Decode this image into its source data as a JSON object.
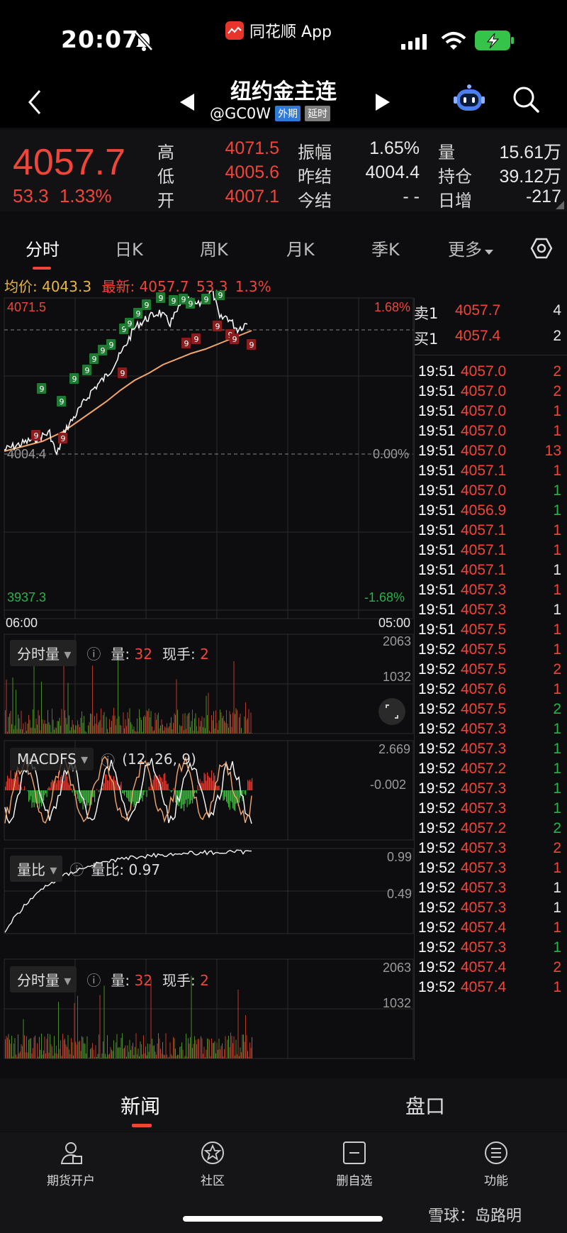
{
  "status_bar": {
    "time": "20:07",
    "app_name": "同花顺 App"
  },
  "header": {
    "title": "纽约金主连",
    "code": "@GC0W",
    "badge_ext": "外期",
    "badge_delay": "延时",
    "icons": [
      "back-icon",
      "prev-arrow-icon",
      "next-arrow-icon",
      "robot-assistant-icon",
      "search-icon"
    ]
  },
  "quote": {
    "price": "4057.7",
    "change": "53.3",
    "change_pct": "1.33%",
    "high_label": "高",
    "high": "4071.5",
    "low_label": "低",
    "low": "4005.6",
    "open_label": "开",
    "open": "4007.1",
    "amplitude_label": "振幅",
    "amplitude": "1.65%",
    "prev_settle_label": "昨结",
    "prev_settle": "4004.4",
    "today_settle_label": "今结",
    "today_settle": "- -",
    "volume_label": "量",
    "volume": "15.61万",
    "open_interest_label": "持仓",
    "open_interest": "39.12万",
    "daily_change_label": "日增",
    "daily_change": "-217"
  },
  "tabs": [
    "分时",
    "日K",
    "周K",
    "月K",
    "季K",
    "更多"
  ],
  "avg_line": {
    "avg_label": "均价:",
    "avg_value": "4043.3",
    "latest_label": "最新:",
    "latest_value": "4057.7",
    "latest_change": "53.3",
    "latest_pct": "1.3%"
  },
  "main_chart": {
    "high": "4071.5",
    "high_pct": "1.68%",
    "base": "4004.4",
    "base_pct": "0.00%",
    "low": "3937.3",
    "low_pct": "-1.68%",
    "time_start": "06:00",
    "time_end": "05:00"
  },
  "volume_panel": {
    "selector": "分时量",
    "qty_label": "量:",
    "qty": "32",
    "now_label": "现手:",
    "now": "2",
    "max": "2063",
    "mid": "1032"
  },
  "macd_panel": {
    "selector": "MACDFS",
    "params": "(12, 26, 9)",
    "max": "2.669",
    "mid": "-0.002"
  },
  "ratio_panel": {
    "selector": "量比",
    "label": "量比:",
    "value": "0.97",
    "max": "0.99",
    "mid": "0.49"
  },
  "volume_panel2": {
    "selector": "分时量",
    "qty_label": "量:",
    "qty": "32",
    "now_label": "现手:",
    "now": "2",
    "max": "2063",
    "mid": "1032"
  },
  "order_book": {
    "sell_label": "卖1",
    "sell_price": "4057.7",
    "sell_qty": "4",
    "buy_label": "买1",
    "buy_price": "4057.4",
    "buy_qty": "2"
  },
  "ticks": [
    {
      "t": "19:51",
      "p": "4057.0",
      "v": "2",
      "c": "red"
    },
    {
      "t": "19:51",
      "p": "4057.0",
      "v": "2",
      "c": "red"
    },
    {
      "t": "19:51",
      "p": "4057.0",
      "v": "1",
      "c": "red"
    },
    {
      "t": "19:51",
      "p": "4057.0",
      "v": "1",
      "c": "red"
    },
    {
      "t": "19:51",
      "p": "4057.0",
      "v": "13",
      "c": "red"
    },
    {
      "t": "19:51",
      "p": "4057.1",
      "v": "1",
      "c": "red"
    },
    {
      "t": "19:51",
      "p": "4057.0",
      "v": "1",
      "c": "green"
    },
    {
      "t": "19:51",
      "p": "4056.9",
      "v": "1",
      "c": "green"
    },
    {
      "t": "19:51",
      "p": "4057.1",
      "v": "1",
      "c": "red"
    },
    {
      "t": "19:51",
      "p": "4057.1",
      "v": "1",
      "c": "red"
    },
    {
      "t": "19:51",
      "p": "4057.1",
      "v": "1",
      "c": "white"
    },
    {
      "t": "19:51",
      "p": "4057.3",
      "v": "1",
      "c": "red"
    },
    {
      "t": "19:51",
      "p": "4057.3",
      "v": "1",
      "c": "white"
    },
    {
      "t": "19:51",
      "p": "4057.5",
      "v": "1",
      "c": "red"
    },
    {
      "t": "19:52",
      "p": "4057.5",
      "v": "1",
      "c": "red"
    },
    {
      "t": "19:52",
      "p": "4057.5",
      "v": "2",
      "c": "red"
    },
    {
      "t": "19:52",
      "p": "4057.6",
      "v": "1",
      "c": "red"
    },
    {
      "t": "19:52",
      "p": "4057.5",
      "v": "2",
      "c": "green"
    },
    {
      "t": "19:52",
      "p": "4057.3",
      "v": "1",
      "c": "green"
    },
    {
      "t": "19:52",
      "p": "4057.3",
      "v": "1",
      "c": "green"
    },
    {
      "t": "19:52",
      "p": "4057.2",
      "v": "1",
      "c": "green"
    },
    {
      "t": "19:52",
      "p": "4057.3",
      "v": "1",
      "c": "green"
    },
    {
      "t": "19:52",
      "p": "4057.3",
      "v": "1",
      "c": "green"
    },
    {
      "t": "19:52",
      "p": "4057.2",
      "v": "2",
      "c": "green"
    },
    {
      "t": "19:52",
      "p": "4057.3",
      "v": "2",
      "c": "red"
    },
    {
      "t": "19:52",
      "p": "4057.3",
      "v": "1",
      "c": "red"
    },
    {
      "t": "19:52",
      "p": "4057.3",
      "v": "1",
      "c": "white"
    },
    {
      "t": "19:52",
      "p": "4057.3",
      "v": "1",
      "c": "white"
    },
    {
      "t": "19:52",
      "p": "4057.4",
      "v": "1",
      "c": "red"
    },
    {
      "t": "19:52",
      "p": "4057.3",
      "v": "1",
      "c": "green"
    },
    {
      "t": "19:52",
      "p": "4057.4",
      "v": "2",
      "c": "red"
    },
    {
      "t": "19:52",
      "p": "4057.4",
      "v": "1",
      "c": "red"
    }
  ],
  "news_tabs": [
    "新闻",
    "盘口"
  ],
  "bottom_nav": [
    {
      "label": "期货开户",
      "icon": "account-open-icon"
    },
    {
      "label": "社区",
      "icon": "community-icon"
    },
    {
      "label": "删自选",
      "icon": "remove-watchlist-icon"
    },
    {
      "label": "功能",
      "icon": "menu-icon"
    }
  ],
  "watermark": "雪球：岛路明",
  "colors": {
    "up": "#f0453a",
    "down": "#27b34a",
    "avg": "#e8b544",
    "bg": "#0d0d0f"
  }
}
